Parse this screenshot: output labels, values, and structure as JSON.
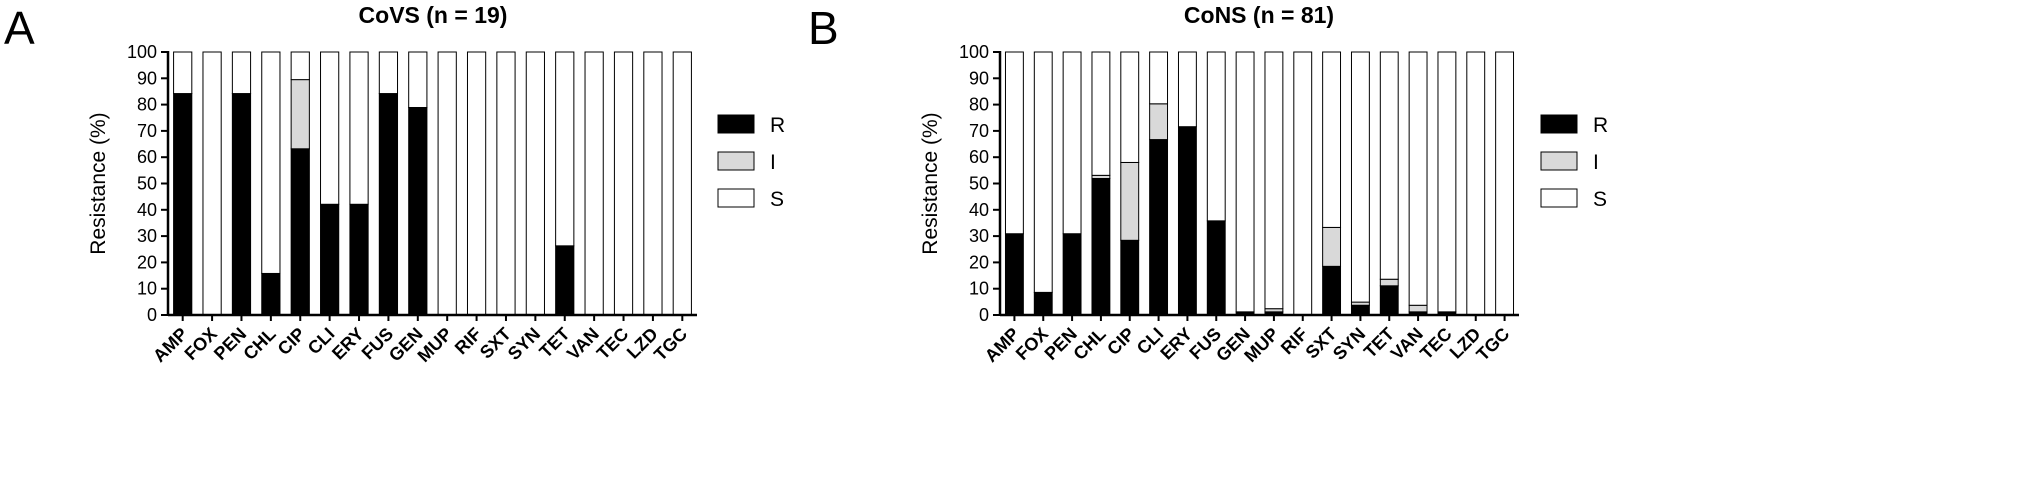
{
  "chart_data": [
    {
      "type": "bar",
      "stacked": true,
      "panel_label": "A",
      "title": "CoVS (n = 19)",
      "xlabel": "",
      "ylabel": "Resistance (%)",
      "ylim": [
        0,
        100
      ],
      "yticks": [
        0,
        10,
        20,
        30,
        40,
        50,
        60,
        70,
        80,
        90,
        100
      ],
      "grid": false,
      "legend_position": "right",
      "categories": [
        "AMP",
        "FOX",
        "PEN",
        "CHL",
        "CIP",
        "CLI",
        "ERY",
        "FUS",
        "GEN",
        "MUP",
        "RIF",
        "SXT",
        "SYN",
        "TET",
        "VAN",
        "TEC",
        "LZD",
        "TGC"
      ],
      "series": [
        {
          "name": "R",
          "color": "#000000",
          "values": [
            84.2,
            0,
            84.2,
            15.8,
            63.2,
            42.1,
            42.1,
            84.2,
            78.9,
            0,
            0,
            0,
            0,
            26.3,
            0,
            0,
            0,
            0
          ]
        },
        {
          "name": "I",
          "color": "#d9d9d9",
          "values": [
            0,
            0,
            0,
            0,
            26.3,
            0,
            0,
            0,
            0,
            0,
            0,
            0,
            0,
            0,
            0,
            0,
            0,
            0
          ]
        },
        {
          "name": "S",
          "color": "#ffffff",
          "values": [
            15.8,
            100,
            15.8,
            84.2,
            10.5,
            57.9,
            57.9,
            15.8,
            21.1,
            100,
            100,
            100,
            100,
            73.7,
            100,
            100,
            100,
            100
          ]
        }
      ]
    },
    {
      "type": "bar",
      "stacked": true,
      "panel_label": "B",
      "title": "CoNS (n = 81)",
      "xlabel": "",
      "ylabel": "Resistance (%)",
      "ylim": [
        0,
        100
      ],
      "yticks": [
        0,
        10,
        20,
        30,
        40,
        50,
        60,
        70,
        80,
        90,
        100
      ],
      "grid": false,
      "legend_position": "right",
      "categories": [
        "AMP",
        "FOX",
        "PEN",
        "CHL",
        "CIP",
        "CLI",
        "ERY",
        "FUS",
        "GEN",
        "MUP",
        "RIF",
        "SXT",
        "SYN",
        "TET",
        "VAN",
        "TEC",
        "LZD",
        "TGC"
      ],
      "series": [
        {
          "name": "R",
          "color": "#000000",
          "values": [
            30.9,
            8.6,
            30.9,
            51.9,
            28.4,
            66.7,
            71.6,
            35.8,
            1.2,
            1.2,
            0,
            18.5,
            3.7,
            11.1,
            1.2,
            1.2,
            0,
            0
          ]
        },
        {
          "name": "I",
          "color": "#d9d9d9",
          "values": [
            0,
            0,
            0,
            1.2,
            29.6,
            13.6,
            0,
            0,
            0,
            1.2,
            0,
            14.8,
            1.2,
            2.5,
            2.5,
            0,
            0,
            0
          ]
        },
        {
          "name": "S",
          "color": "#ffffff",
          "values": [
            69.1,
            91.4,
            69.1,
            46.9,
            42.0,
            19.7,
            28.4,
            64.2,
            98.8,
            97.6,
            100,
            66.7,
            95.1,
            86.4,
            96.3,
            98.8,
            100,
            100
          ]
        }
      ]
    }
  ]
}
